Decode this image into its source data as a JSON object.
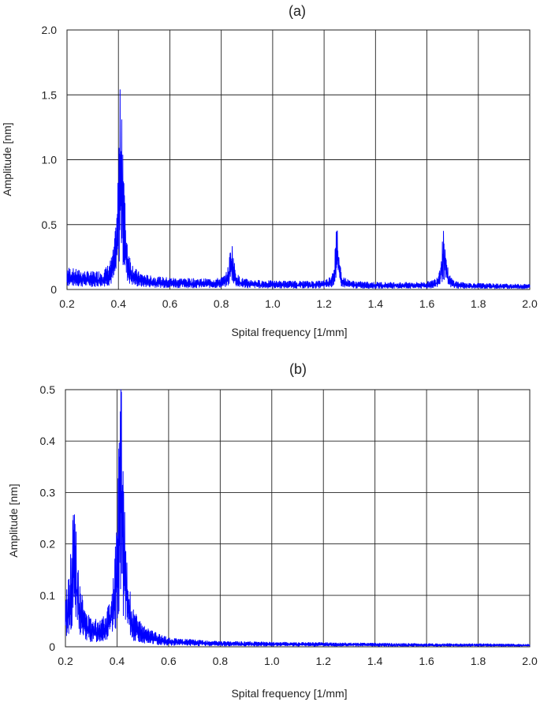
{
  "colors": {
    "series": "#0000ff",
    "grid": "#222222",
    "background": "#ffffff"
  },
  "chart_data": [
    {
      "type": "line",
      "title": "(a)",
      "xlabel": "Spital frequency [1/mm]",
      "ylabel": "Amplitude [nm]",
      "xlim": [
        0.2,
        2.0
      ],
      "ylim": [
        0,
        2.0
      ],
      "xticks": [
        "0.2",
        "0.4",
        "0.6",
        "0.8",
        "1.0",
        "1.2",
        "1.4",
        "1.6",
        "1.8",
        "2.0"
      ],
      "yticks": [
        "0",
        "0.5",
        "1.0",
        "1.5",
        "2.0"
      ],
      "grid": true,
      "series": [
        {
          "color": "#0000ff",
          "baseline": [
            [
              0.2,
              0.17
            ],
            [
              0.25,
              0.14
            ],
            [
              0.3,
              0.12
            ],
            [
              0.35,
              0.11
            ],
            [
              0.4,
              0.1
            ],
            [
              0.5,
              0.09
            ],
            [
              0.6,
              0.085
            ],
            [
              0.8,
              0.075
            ],
            [
              1.0,
              0.065
            ],
            [
              1.2,
              0.06
            ],
            [
              1.4,
              0.055
            ],
            [
              1.6,
              0.05
            ],
            [
              1.8,
              0.045
            ],
            [
              2.0,
              0.04
            ]
          ],
          "peaks": [
            {
              "x": 0.41,
              "y": 1.57,
              "width": 0.012
            },
            {
              "x": 0.84,
              "y": 0.3,
              "width": 0.01
            },
            {
              "x": 1.25,
              "y": 0.43,
              "width": 0.009
            },
            {
              "x": 1.665,
              "y": 0.44,
              "width": 0.01
            }
          ]
        }
      ]
    },
    {
      "type": "line",
      "title": "(b)",
      "xlabel": "Spital frequency [1/mm]",
      "ylabel": "Amplitude [nm]",
      "xlim": [
        0.2,
        2.0
      ],
      "ylim": [
        0,
        0.5
      ],
      "xticks": [
        "0.2",
        "0.4",
        "0.6",
        "0.8",
        "1.0",
        "1.2",
        "1.4",
        "1.6",
        "1.8",
        "2.0"
      ],
      "yticks": [
        "0",
        "0.1",
        "0.2",
        "0.3",
        "0.4",
        "0.5"
      ],
      "grid": true,
      "series": [
        {
          "color": "#0000ff",
          "baseline": [
            [
              0.2,
              0.08
            ],
            [
              0.22,
              0.1
            ],
            [
              0.25,
              0.09
            ],
            [
              0.28,
              0.05
            ],
            [
              0.32,
              0.04
            ],
            [
              0.36,
              0.045
            ],
            [
              0.4,
              0.06
            ],
            [
              0.5,
              0.03
            ],
            [
              0.6,
              0.015
            ],
            [
              0.8,
              0.01
            ],
            [
              1.0,
              0.009
            ],
            [
              1.2,
              0.008
            ],
            [
              1.4,
              0.007
            ],
            [
              1.6,
              0.006
            ],
            [
              1.8,
              0.006
            ],
            [
              2.0,
              0.005
            ]
          ],
          "peaks": [
            {
              "x": 0.235,
              "y": 0.2,
              "width": 0.012
            },
            {
              "x": 0.415,
              "y": 0.47,
              "width": 0.014
            }
          ]
        }
      ]
    }
  ]
}
